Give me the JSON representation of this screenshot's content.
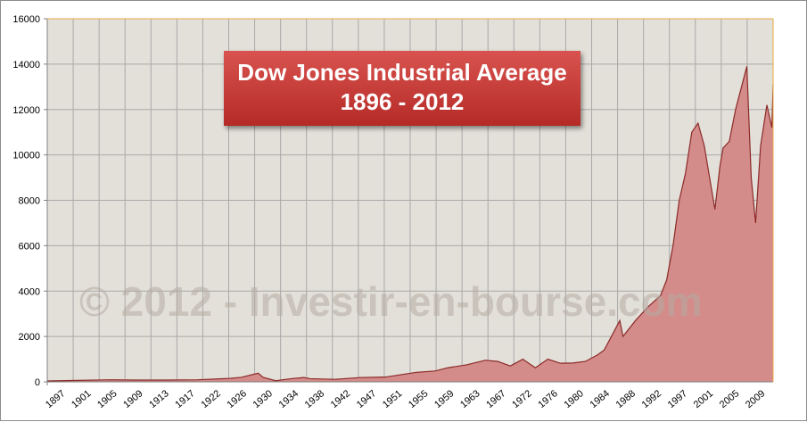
{
  "chart_data": {
    "type": "area",
    "title_line1": "Dow Jones Industrial Average",
    "title_line2": "1896 - 2012",
    "watermark": "© 2012 - Investir-en-bourse.com",
    "xlabel": "",
    "ylabel": "",
    "xlim": [
      1896,
      2012
    ],
    "ylim": [
      0,
      16000
    ],
    "yticks": [
      0,
      2000,
      4000,
      6000,
      8000,
      10000,
      12000,
      14000,
      16000
    ],
    "xticks": [
      "1897",
      "1901",
      "1905",
      "1909",
      "1913",
      "1917",
      "1922",
      "1926",
      "1930",
      "1934",
      "1938",
      "1942",
      "1947",
      "1951",
      "1955",
      "1959",
      "1963",
      "1967",
      "1972",
      "1976",
      "1980",
      "1984",
      "1988",
      "1992",
      "1997",
      "2001",
      "2005",
      "2009"
    ],
    "grid": true,
    "colors": {
      "fill": "#d38c8a",
      "line": "#8b2a28",
      "plot_bg": "#e3e0d9",
      "grid": "#a9a9a9"
    },
    "series": [
      {
        "x": [
          1896,
          1900,
          1906,
          1910,
          1915,
          1920,
          1925,
          1927,
          1929.7,
          1930.5,
          1932.5,
          1935,
          1937,
          1938,
          1942,
          1946,
          1950,
          1955,
          1958,
          1960,
          1963,
          1966,
          1968,
          1970,
          1972,
          1974,
          1976,
          1978,
          1980,
          1982,
          1984,
          1985,
          1987.5,
          1988,
          1990,
          1992,
          1994,
          1995,
          1996,
          1997,
          1998,
          1999,
          2000,
          2001,
          2002.7,
          2003.5,
          2004,
          2005,
          2006,
          2007.8,
          2008.5,
          2009.2,
          2010,
          2011,
          2011.8,
          2012
        ],
        "y": [
          40,
          60,
          90,
          80,
          80,
          90,
          150,
          200,
          380,
          200,
          50,
          140,
          190,
          140,
          110,
          190,
          210,
          420,
          480,
          620,
          750,
          950,
          900,
          700,
          1000,
          620,
          1000,
          820,
          830,
          900,
          1200,
          1400,
          2700,
          2000,
          2700,
          3300,
          3800,
          4500,
          6000,
          8000,
          9200,
          11000,
          11400,
          10400,
          7600,
          9500,
          10300,
          10600,
          12000,
          13900,
          9000,
          7000,
          10400,
          12200,
          11200,
          13100
        ]
      }
    ]
  }
}
